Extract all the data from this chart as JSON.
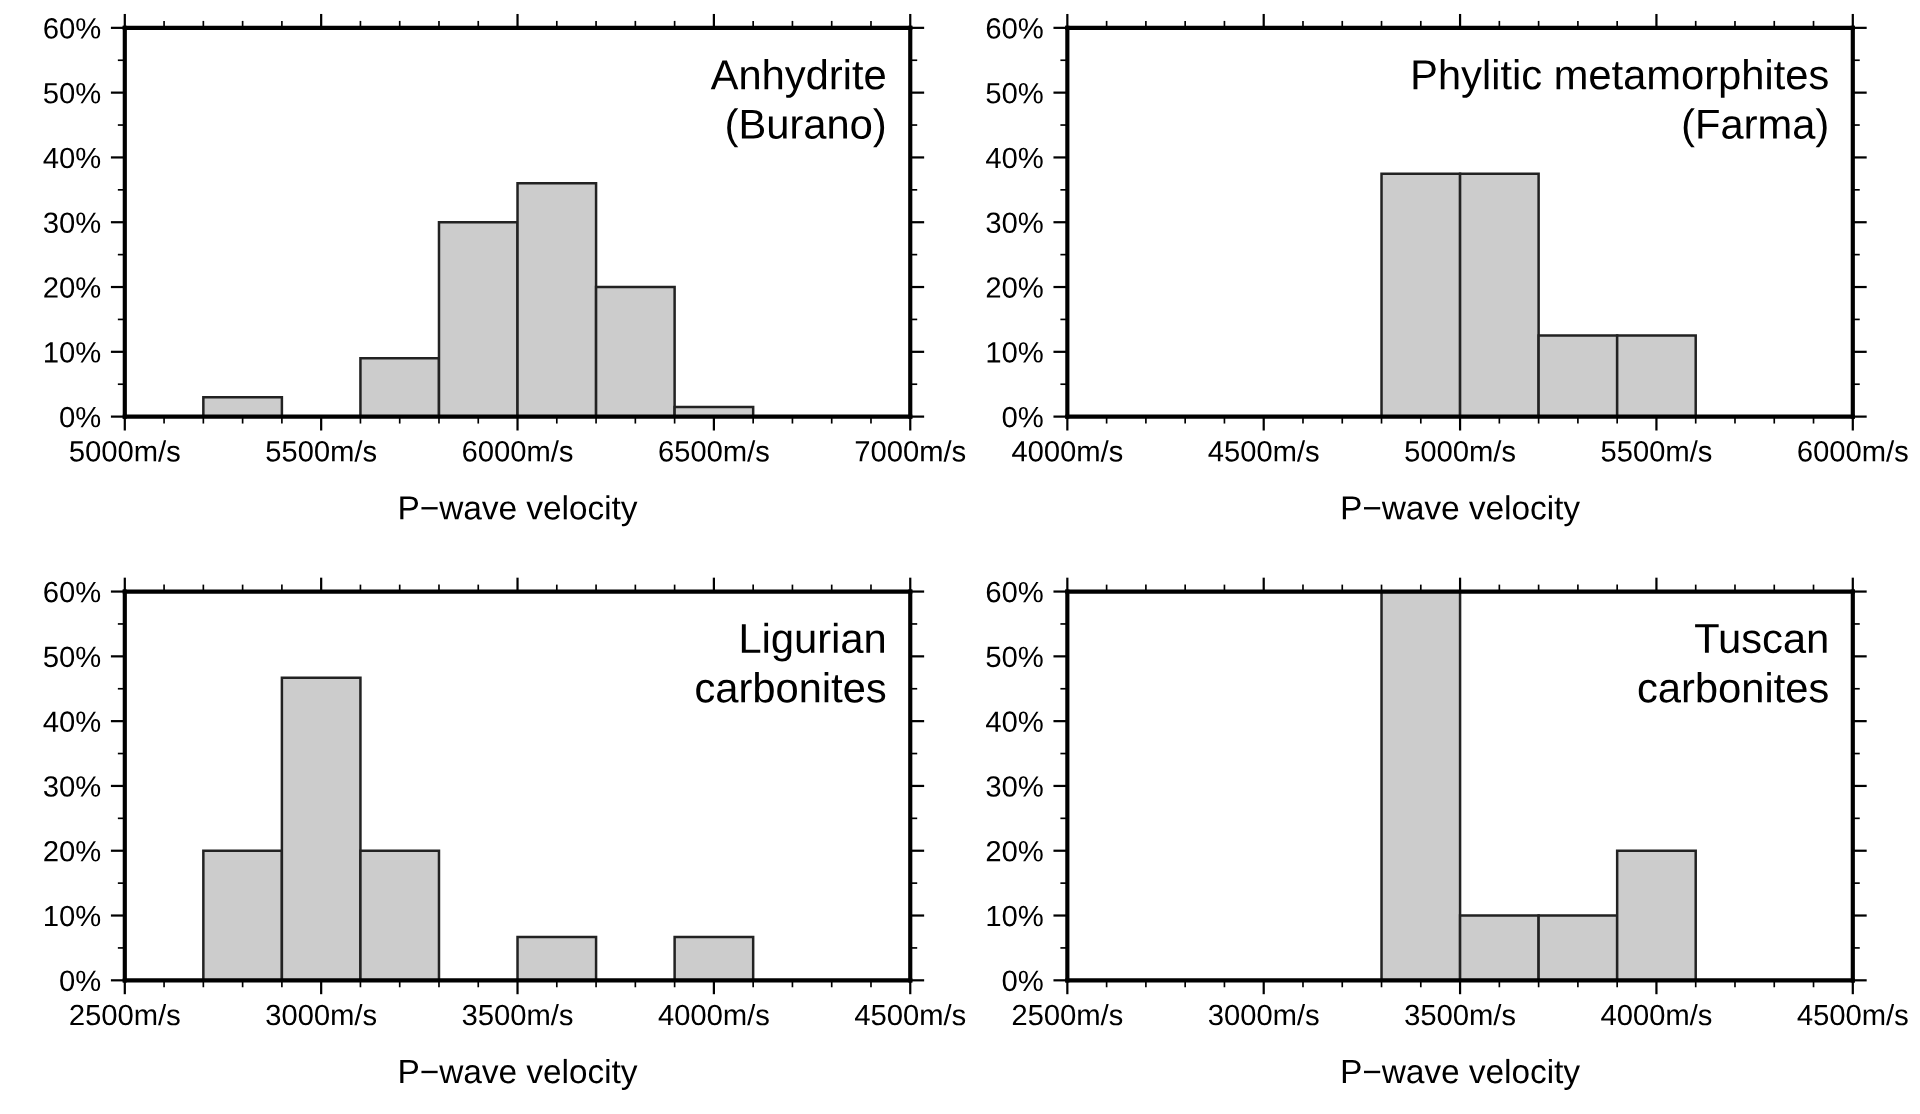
{
  "chart_data": [
    {
      "type": "histogram",
      "annotations": [
        "Anhydrite\n(Burano)"
      ],
      "xlabel": "P−wave velocity",
      "bins": [
        5200,
        5400,
        5600,
        5800,
        6000,
        6200,
        6400,
        6600
      ],
      "values": [
        3,
        0,
        9,
        30,
        36,
        20,
        1.5
      ],
      "color": "#cccccc",
      "xlim": [
        5000,
        7000
      ],
      "xticks": [
        {
          "value": 5000,
          "label": "5000m/s"
        },
        {
          "value": 5500,
          "label": "5500m/s"
        },
        {
          "value": 6000,
          "label": "6000m/s"
        },
        {
          "value": 6500,
          "label": "6500m/s"
        },
        {
          "value": 7000,
          "label": "7000m/s"
        }
      ],
      "ylim": [
        0,
        60
      ],
      "yticks": [
        {
          "value": 0,
          "label": "0%"
        },
        {
          "value": 10,
          "label": "10%"
        },
        {
          "value": 20,
          "label": "20%"
        },
        {
          "value": 30,
          "label": "30%"
        },
        {
          "value": 40,
          "label": "40%"
        },
        {
          "value": 50,
          "label": "50%"
        },
        {
          "value": 60,
          "label": "60%"
        }
      ],
      "grid": false
    },
    {
      "type": "histogram",
      "annotations": [
        "Phylitic metamorphites\n(Farma)"
      ],
      "xlabel": "P−wave velocity",
      "bins": [
        4800,
        5000,
        5200,
        5400,
        5600
      ],
      "values": [
        37.5,
        37.5,
        12.5,
        12.5
      ],
      "color": "#cccccc",
      "xlim": [
        4000,
        6000
      ],
      "xticks": [
        {
          "value": 4000,
          "label": "4000m/s"
        },
        {
          "value": 4500,
          "label": "4500m/s"
        },
        {
          "value": 5000,
          "label": "5000m/s"
        },
        {
          "value": 5500,
          "label": "5500m/s"
        },
        {
          "value": 6000,
          "label": "6000m/s"
        }
      ],
      "ylim": [
        0,
        60
      ],
      "yticks": [
        {
          "value": 0,
          "label": "0%"
        },
        {
          "value": 10,
          "label": "10%"
        },
        {
          "value": 20,
          "label": "20%"
        },
        {
          "value": 30,
          "label": "30%"
        },
        {
          "value": 40,
          "label": "40%"
        },
        {
          "value": 50,
          "label": "50%"
        },
        {
          "value": 60,
          "label": "60%"
        }
      ],
      "grid": false
    },
    {
      "type": "histogram",
      "annotations": [
        "Ligurian\ncarbonites"
      ],
      "xlabel": "P−wave velocity",
      "bins": [
        2700,
        2900,
        3100,
        3300,
        3500,
        3700,
        3900,
        4100
      ],
      "values": [
        20,
        46.7,
        20,
        0,
        6.7,
        0,
        6.7
      ],
      "color": "#cccccc",
      "xlim": [
        2500,
        4500
      ],
      "xticks": [
        {
          "value": 2500,
          "label": "2500m/s"
        },
        {
          "value": 3000,
          "label": "3000m/s"
        },
        {
          "value": 3500,
          "label": "3500m/s"
        },
        {
          "value": 4000,
          "label": "4000m/s"
        },
        {
          "value": 4500,
          "label": "4500m/s"
        }
      ],
      "ylim": [
        0,
        60
      ],
      "yticks": [
        {
          "value": 0,
          "label": "0%"
        },
        {
          "value": 10,
          "label": "10%"
        },
        {
          "value": 20,
          "label": "20%"
        },
        {
          "value": 30,
          "label": "30%"
        },
        {
          "value": 40,
          "label": "40%"
        },
        {
          "value": 50,
          "label": "50%"
        },
        {
          "value": 60,
          "label": "60%"
        }
      ],
      "grid": false
    },
    {
      "type": "histogram",
      "annotations": [
        "Tuscan\ncarbonites"
      ],
      "xlabel": "P−wave velocity",
      "bins": [
        3300,
        3500,
        3700,
        3900,
        4100
      ],
      "values": [
        60,
        10,
        10,
        20
      ],
      "color": "#cccccc",
      "xlim": [
        2500,
        4500
      ],
      "xticks": [
        {
          "value": 2500,
          "label": "2500m/s"
        },
        {
          "value": 3000,
          "label": "3000m/s"
        },
        {
          "value": 3500,
          "label": "3500m/s"
        },
        {
          "value": 4000,
          "label": "4000m/s"
        },
        {
          "value": 4500,
          "label": "4500m/s"
        }
      ],
      "ylim": [
        0,
        60
      ],
      "yticks": [
        {
          "value": 0,
          "label": "0%"
        },
        {
          "value": 10,
          "label": "10%"
        },
        {
          "value": 20,
          "label": "20%"
        },
        {
          "value": 30,
          "label": "30%"
        },
        {
          "value": 40,
          "label": "40%"
        },
        {
          "value": 50,
          "label": "50%"
        },
        {
          "value": 60,
          "label": "60%"
        }
      ],
      "grid": false
    }
  ]
}
